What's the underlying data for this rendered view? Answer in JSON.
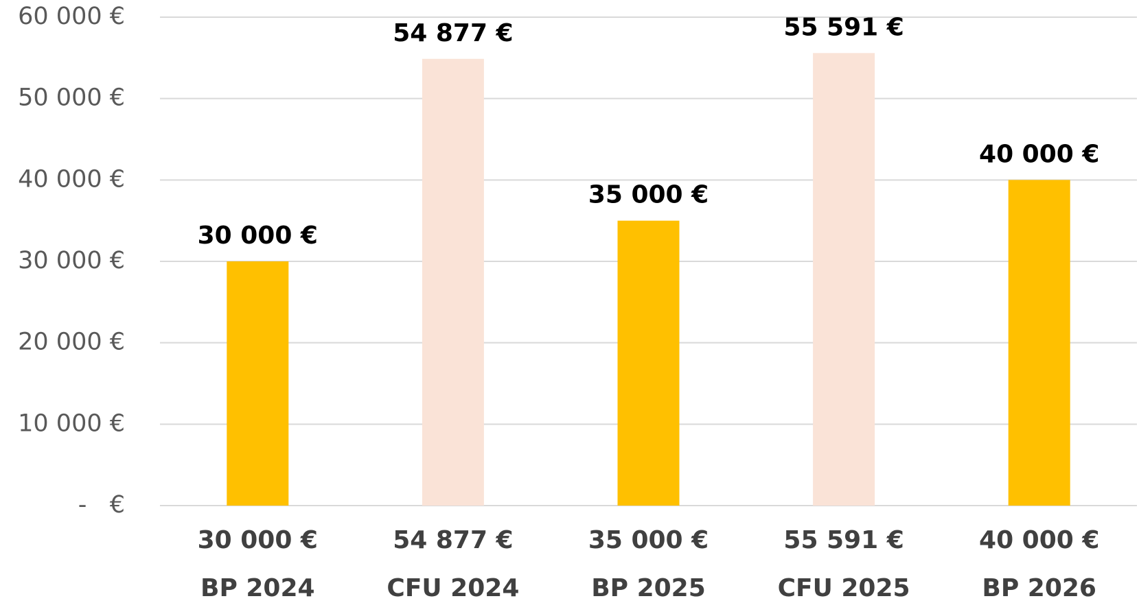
{
  "chart_data": {
    "type": "bar",
    "categories": [
      "BP 2024",
      "CFU 2024",
      "BP 2025",
      "CFU 2025",
      "BP 2026"
    ],
    "values": [
      30000,
      54877,
      35000,
      55591,
      40000
    ],
    "value_labels": [
      "30 000 €",
      "54 877 €",
      "35 000 €",
      "55 591 €",
      "40 000 €"
    ],
    "colors": [
      "#ffc000",
      "#fae3d7",
      "#ffc000",
      "#fae3d7",
      "#ffc000"
    ],
    "ylim": [
      0,
      60000
    ],
    "yticks": [
      {
        "value": 0,
        "label": "-   €"
      },
      {
        "value": 10000,
        "label": "10 000 €"
      },
      {
        "value": 20000,
        "label": "20 000 €"
      },
      {
        "value": 30000,
        "label": "30 000 €"
      },
      {
        "value": 40000,
        "label": "40 000 €"
      },
      {
        "value": 50000,
        "label": "50 000 €"
      },
      {
        "value": 60000,
        "label": "60 000 €"
      }
    ],
    "grid": true
  }
}
